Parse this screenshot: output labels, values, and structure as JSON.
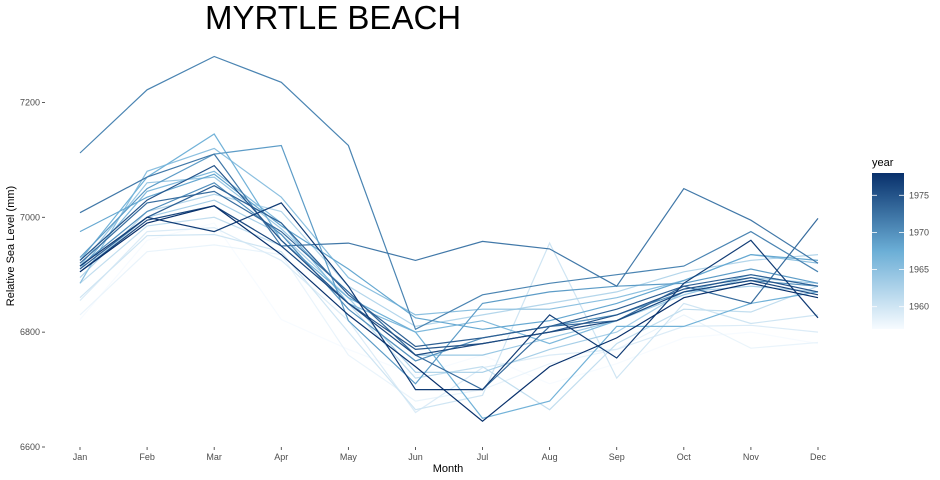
{
  "chart_data": {
    "type": "line",
    "title": "MYRTLE BEACH",
    "xlabel": "Month",
    "ylabel": "Relative Sea Level (mm)",
    "categories": [
      "Jan",
      "Feb",
      "Mar",
      "Apr",
      "May",
      "Jun",
      "Jul",
      "Aug",
      "Sep",
      "Oct",
      "Nov",
      "Dec"
    ],
    "ylim": [
      6600,
      7300
    ],
    "yticks": [
      6600,
      6800,
      7000,
      7200
    ],
    "grid": false,
    "color_scale": {
      "title": "year",
      "range": [
        1957,
        1978
      ],
      "ticks": [
        1960,
        1965,
        1970,
        1975
      ],
      "low_color": "#f7fbff",
      "high_color": "#08306b"
    },
    "legend_position": "right",
    "series": [
      {
        "year": 1957,
        "values": [
          6822,
          6960,
          6990,
          6822,
          6770,
          6725,
          6760,
          6710,
          6745,
          6790,
          6800,
          6780
        ]
      },
      {
        "year": 1958,
        "values": [
          6830,
          6940,
          6952,
          6935,
          6760,
          6680,
          6700,
          6745,
          6770,
          6830,
          6772,
          6782
        ]
      },
      {
        "year": 1959,
        "values": [
          6855,
          6975,
          6982,
          6925,
          6820,
          6660,
          6738,
          6760,
          6770,
          6810,
          6812,
          6800
        ]
      },
      {
        "year": 1960,
        "values": [
          6860,
          6968,
          6970,
          6940,
          6800,
          6665,
          6690,
          6955,
          6720,
          6850,
          6815,
          6830
        ]
      },
      {
        "year": 1961,
        "values": [
          6885,
          6985,
          7000,
          6950,
          6850,
          6720,
          6740,
          6665,
          6780,
          6840,
          6835,
          6880
        ]
      },
      {
        "year": 1962,
        "values": [
          6895,
          7010,
          7040,
          7010,
          6880,
          6810,
          6830,
          6850,
          6870,
          6905,
          6925,
          6935
        ]
      },
      {
        "year": 1963,
        "values": [
          6905,
          7000,
          7030,
          6970,
          6860,
          6730,
          6730,
          6770,
          6800,
          6870,
          6880,
          6870
        ]
      },
      {
        "year": 1964,
        "values": [
          6915,
          7060,
          7070,
          6980,
          6870,
          6760,
          6760,
          6790,
          6820,
          6865,
          6895,
          6885
        ]
      },
      {
        "year": 1965,
        "values": [
          6885,
          7080,
          7120,
          7035,
          6895,
          6830,
          6840,
          6840,
          6860,
          6890,
          6935,
          6920
        ]
      },
      {
        "year": 1966,
        "values": [
          6910,
          7045,
          7080,
          6990,
          6850,
          6800,
          6820,
          6780,
          6820,
          6870,
          6900,
          6880
        ]
      },
      {
        "year": 1967,
        "values": [
          6925,
          7070,
          7145,
          6960,
          6860,
          6800,
          6650,
          6680,
          6810,
          6810,
          6850,
          6870
        ]
      },
      {
        "year": 1968,
        "values": [
          6975,
          7035,
          7075,
          6985,
          6910,
          6825,
          6805,
          6820,
          6850,
          6890,
          6935,
          6925
        ]
      },
      {
        "year": 1969,
        "values": [
          6930,
          7050,
          7110,
          7125,
          6820,
          6710,
          6850,
          6870,
          6880,
          6885,
          6910,
          6885
        ]
      },
      {
        "year": 1970,
        "values": [
          6915,
          7010,
          7060,
          6970,
          6840,
          6750,
          6790,
          6810,
          6830,
          6870,
          6890,
          6880
        ]
      },
      {
        "year": 1971,
        "values": [
          7112,
          7222,
          7280,
          7235,
          7125,
          6805,
          6865,
          6885,
          6900,
          6915,
          6975,
          6905
        ]
      },
      {
        "year": 1972,
        "values": [
          7008,
          7070,
          7110,
          6950,
          6955,
          6925,
          6958,
          6945,
          6880,
          7050,
          6995,
          6920
        ]
      },
      {
        "year": 1973,
        "values": [
          6920,
          7025,
          7045,
          6975,
          6870,
          6760,
          6700,
          6810,
          6820,
          6880,
          6850,
          6998
        ]
      },
      {
        "year": 1974,
        "values": [
          6910,
          7000,
          7055,
          6990,
          6865,
          6775,
          6790,
          6810,
          6840,
          6880,
          6900,
          6880
        ]
      },
      {
        "year": 1975,
        "values": [
          6925,
          7030,
          7090,
          6960,
          6850,
          6770,
          6780,
          6800,
          6830,
          6875,
          6895,
          6870
        ]
      },
      {
        "year": 1976,
        "values": [
          6905,
          6995,
          7020,
          6950,
          6850,
          6760,
          6780,
          6800,
          6820,
          6870,
          6890,
          6865
        ]
      },
      {
        "year": 1977,
        "values": [
          6915,
          7000,
          6975,
          7025,
          6880,
          6700,
          6700,
          6830,
          6755,
          6885,
          6960,
          6825
        ]
      },
      {
        "year": 1978,
        "values": [
          6905,
          6990,
          7020,
          6935,
          6830,
          6740,
          6645,
          6740,
          6790,
          6860,
          6885,
          6860
        ]
      }
    ]
  }
}
